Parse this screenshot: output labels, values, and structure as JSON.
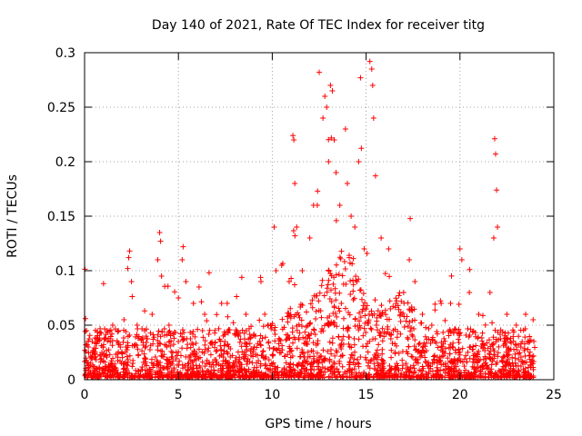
{
  "chart_data": {
    "type": "scatter",
    "title": "Day 140 of 2021, Rate Of TEC Index for receiver titg",
    "xlabel": "GPS time / hours",
    "ylabel": "ROTI / TECUs",
    "xlim": [
      0,
      25
    ],
    "ylim": [
      0,
      0.3
    ],
    "x_ticks": [
      0,
      5,
      10,
      15,
      20,
      25
    ],
    "y_ticks": [
      0,
      0.05,
      0.1,
      0.15,
      0.2,
      0.25,
      0.3
    ],
    "x_tick_labels": [
      "0",
      "5",
      "10",
      "15",
      "20",
      "25"
    ],
    "y_tick_labels": [
      "0",
      "0.05",
      "0.1",
      "0.15",
      "0.2",
      "0.25",
      "0.3"
    ],
    "grid": true,
    "marker": "+",
    "color": "#ff0000",
    "series": [
      {
        "x_range": [
          0,
          24
        ],
        "points": [
          [
            0.05,
            0.056
          ],
          [
            0.1,
            0.045
          ],
          [
            0.2,
            0.03
          ],
          [
            0.4,
            0.02
          ],
          [
            0.7,
            0.035
          ],
          [
            1.0,
            0.03
          ],
          [
            1.2,
            0.045
          ],
          [
            1.5,
            0.05
          ],
          [
            1.8,
            0.045
          ],
          [
            2.1,
            0.055
          ],
          [
            2.3,
            0.102
          ],
          [
            2.35,
            0.112
          ],
          [
            2.4,
            0.118
          ],
          [
            2.5,
            0.09
          ],
          [
            2.8,
            0.05
          ],
          [
            3.2,
            0.045
          ],
          [
            3.6,
            0.06
          ],
          [
            3.9,
            0.11
          ],
          [
            4.0,
            0.135
          ],
          [
            4.05,
            0.127
          ],
          [
            4.1,
            0.095
          ],
          [
            4.5,
            0.05
          ],
          [
            5.0,
            0.075
          ],
          [
            5.2,
            0.11
          ],
          [
            5.25,
            0.122
          ],
          [
            5.4,
            0.09
          ],
          [
            5.8,
            0.07
          ],
          [
            6.1,
            0.085
          ],
          [
            6.4,
            0.06
          ],
          [
            7.3,
            0.07
          ],
          [
            7.6,
            0.07
          ],
          [
            8.2,
            0.04
          ],
          [
            8.6,
            0.06
          ],
          [
            9.1,
            0.04
          ],
          [
            9.4,
            0.09
          ],
          [
            9.6,
            0.06
          ],
          [
            10.1,
            0.14
          ],
          [
            10.2,
            0.1
          ],
          [
            10.5,
            0.105
          ],
          [
            10.9,
            0.09
          ],
          [
            11.1,
            0.224
          ],
          [
            11.15,
            0.22
          ],
          [
            11.2,
            0.18
          ],
          [
            11.3,
            0.14
          ],
          [
            11.6,
            0.1
          ],
          [
            12.0,
            0.13
          ],
          [
            12.2,
            0.16
          ],
          [
            12.4,
            0.16
          ],
          [
            12.5,
            0.282
          ],
          [
            12.7,
            0.24
          ],
          [
            12.8,
            0.26
          ],
          [
            12.9,
            0.25
          ],
          [
            13.0,
            0.2
          ],
          [
            13.1,
            0.27
          ],
          [
            13.2,
            0.265
          ],
          [
            13.3,
            0.22
          ],
          [
            13.4,
            0.19
          ],
          [
            13.6,
            0.16
          ],
          [
            13.9,
            0.23
          ],
          [
            14.0,
            0.18
          ],
          [
            14.2,
            0.15
          ],
          [
            14.4,
            0.14
          ],
          [
            14.6,
            0.2
          ],
          [
            14.7,
            0.277
          ],
          [
            14.9,
            0.12
          ],
          [
            15.2,
            0.292
          ],
          [
            15.3,
            0.285
          ],
          [
            15.35,
            0.27
          ],
          [
            15.4,
            0.24
          ],
          [
            15.5,
            0.187
          ],
          [
            15.8,
            0.13
          ],
          [
            16.2,
            0.12
          ],
          [
            16.6,
            0.07
          ],
          [
            17.0,
            0.08
          ],
          [
            17.3,
            0.11
          ],
          [
            17.6,
            0.09
          ],
          [
            18.0,
            0.06
          ],
          [
            18.5,
            0.05
          ],
          [
            19.0,
            0.07
          ],
          [
            19.5,
            0.07
          ],
          [
            20.0,
            0.12
          ],
          [
            20.1,
            0.11
          ],
          [
            20.5,
            0.08
          ],
          [
            21.0,
            0.06
          ],
          [
            21.6,
            0.08
          ],
          [
            21.8,
            0.13
          ],
          [
            21.85,
            0.221
          ],
          [
            21.9,
            0.207
          ],
          [
            21.95,
            0.174
          ],
          [
            22.0,
            0.14
          ],
          [
            22.5,
            0.06
          ],
          [
            23.0,
            0.05
          ],
          [
            23.5,
            0.06
          ],
          [
            23.9,
            0.055
          ]
        ]
      }
    ]
  }
}
